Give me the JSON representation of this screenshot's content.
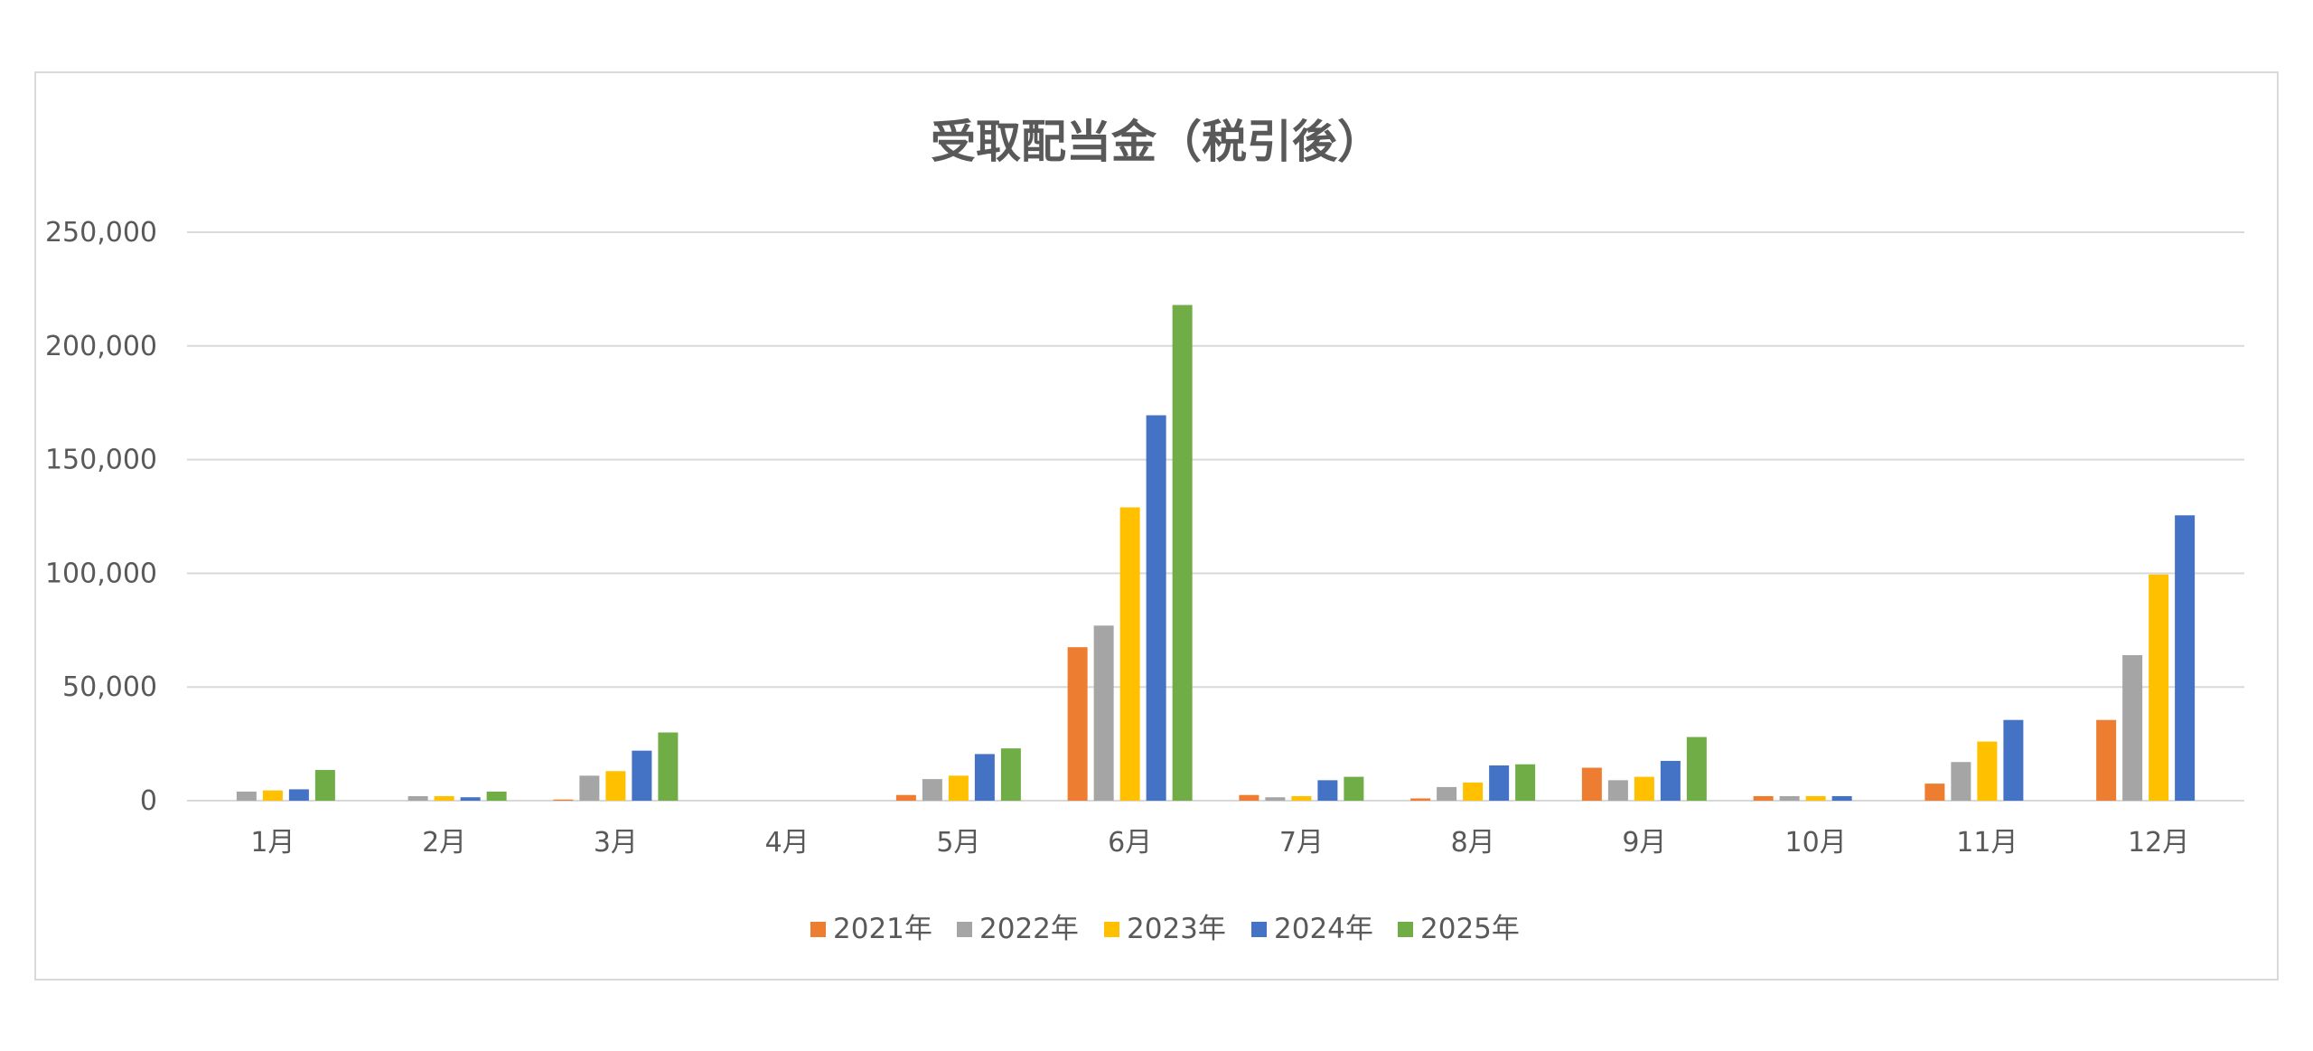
{
  "chart_data": {
    "type": "bar",
    "title": "受取配当金（税引後）",
    "categories": [
      "1月",
      "2月",
      "3月",
      "4月",
      "5月",
      "6月",
      "7月",
      "8月",
      "9月",
      "10月",
      "11月",
      "12月"
    ],
    "y_ticks": [
      "0",
      "50,000",
      "100,000",
      "150,000",
      "200,000",
      "250,000"
    ],
    "ylim": [
      0,
      250000
    ],
    "grid": true,
    "legend_position": "bottom",
    "series": [
      {
        "name": "2021年",
        "color": "#ED7D31",
        "values": [
          0,
          0,
          500,
          0,
          2500,
          67500,
          2500,
          1000,
          14500,
          2000,
          7500,
          35500
        ]
      },
      {
        "name": "2022年",
        "color": "#A5A5A5",
        "values": [
          4000,
          2000,
          11000,
          0,
          9500,
          77000,
          1500,
          6000,
          9000,
          2000,
          17000,
          64000
        ]
      },
      {
        "name": "2023年",
        "color": "#FFC000",
        "values": [
          4500,
          2000,
          13000,
          0,
          11000,
          129000,
          2000,
          8000,
          10500,
          2000,
          26000,
          99500
        ]
      },
      {
        "name": "2024年",
        "color": "#4472C4",
        "values": [
          5000,
          1500,
          22000,
          0,
          20500,
          169500,
          9000,
          15500,
          17500,
          2000,
          35500,
          125500
        ]
      },
      {
        "name": "2025年",
        "color": "#70AD47",
        "values": [
          13500,
          4000,
          30000,
          0,
          23000,
          218000,
          10500,
          16000,
          28000,
          null,
          null,
          null
        ]
      }
    ]
  }
}
